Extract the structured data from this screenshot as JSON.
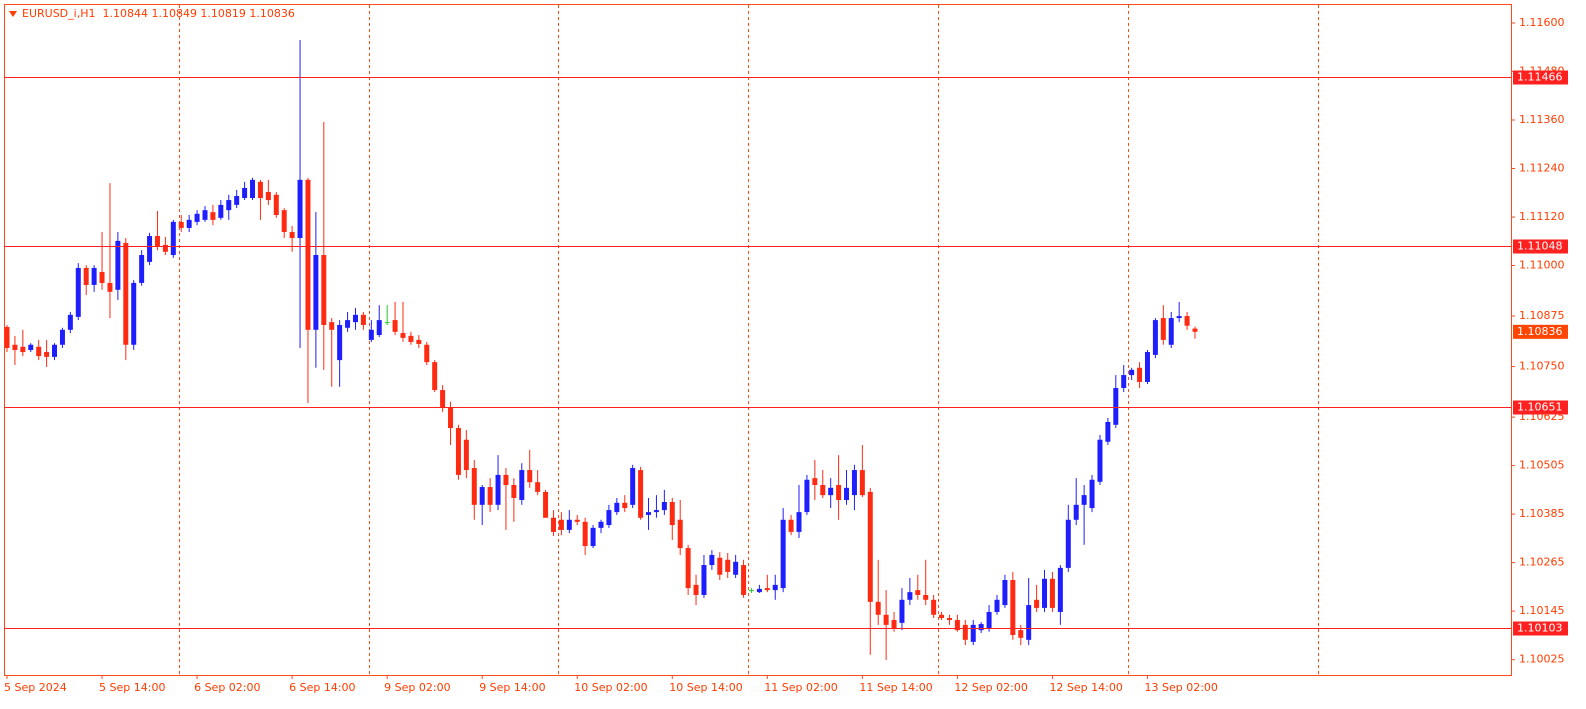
{
  "chart_data": {
    "type": "candlestick",
    "title": "EURUSD_i,H1  1.10844 1.10849 1.10819 1.10836",
    "up_color": "#1e1eff",
    "down_color": "#ff2a12",
    "doji_color": "#22cc22",
    "line_color": "#ff2020",
    "ylim": [
      1.09987,
      1.11647
    ],
    "yticks": [
      {
        "value": 1.116,
        "label": "1.11600"
      },
      {
        "value": 1.1148,
        "label": "1.11480"
      },
      {
        "value": 1.1136,
        "label": "1.11360"
      },
      {
        "value": 1.1124,
        "label": "1.11240"
      },
      {
        "value": 1.1112,
        "label": "1.11120"
      },
      {
        "value": 1.11,
        "label": "1.11000"
      },
      1.10875,
      {
        "value": 1.1075,
        "label": "1.10750"
      },
      1.10625,
      1.10505,
      1.10385,
      1.10265,
      1.10145,
      1.10025
    ],
    "hlines": [
      1.11466,
      1.11048,
      1.10651,
      1.10103
    ],
    "categories": [
      "5 Sep 2024",
      null,
      null,
      null,
      null,
      null,
      null,
      null,
      null,
      null,
      null,
      null,
      "5 Sep 14:00",
      null,
      null,
      null,
      null,
      null,
      null,
      null,
      null,
      null,
      null,
      null,
      "6 Sep 02:00",
      null,
      null,
      null,
      null,
      null,
      null,
      null,
      null,
      null,
      null,
      null,
      "6 Sep 14:00",
      null,
      null,
      null,
      null,
      null,
      null,
      null,
      null,
      null,
      null,
      null,
      "9 Sep 02:00",
      null,
      null,
      null,
      null,
      null,
      null,
      null,
      null,
      null,
      null,
      null,
      "9 Sep 14:00",
      null,
      null,
      null,
      null,
      null,
      null,
      null,
      null,
      null,
      null,
      null,
      "10 Sep 02:00",
      null,
      null,
      null,
      null,
      null,
      null,
      null,
      null,
      null,
      null,
      null,
      "10 Sep 14:00",
      null,
      null,
      null,
      null,
      null,
      null,
      null,
      null,
      null,
      null,
      null,
      "11 Sep 02:00",
      null,
      null,
      null,
      null,
      null,
      null,
      null,
      null,
      null,
      null,
      null,
      "11 Sep 14:00",
      null,
      null,
      null,
      null,
      null,
      null,
      null,
      null,
      null,
      null,
      null,
      "12 Sep 02:00",
      null,
      null,
      null,
      null,
      null,
      null,
      null,
      null,
      null,
      null,
      null,
      "12 Sep 14:00",
      null,
      null,
      null,
      null,
      null,
      null,
      null,
      null,
      null,
      null,
      null,
      "13 Sep 02:00",
      null,
      null,
      null,
      null,
      null,
      null
    ],
    "open": [
      1.10848,
      1.10804,
      1.10799,
      1.10791,
      1.10799,
      1.10786,
      1.10774,
      1.10804,
      1.10841,
      1.10873,
      1.10994,
      1.10952,
      1.10984,
      1.10957,
      1.1094,
      1.11056,
      1.10804,
      1.10957,
      1.11009,
      1.11073,
      1.11051,
      1.11026,
      1.11108,
      1.11093,
      1.11108,
      1.11113,
      1.11132,
      1.11118,
      1.11137,
      1.1115,
      1.11167,
      1.11167,
      1.11207,
      1.11182,
      1.11175,
      1.11137,
      1.11083,
      1.11068,
      1.11212,
      1.10841,
      1.11026,
      1.1086,
      1.10766,
      1.10846,
      1.1086,
      1.10878,
      1.10816,
      1.10828,
      1.1086,
      1.10865,
      1.10833,
      1.10826,
      1.10816,
      1.10804,
      1.10761,
      1.10692,
      1.10648,
      1.10598,
      1.10569,
      1.10499,
      1.10408,
      1.10452,
      1.10408,
      1.10482,
      1.10457,
      1.1042,
      1.10494,
      1.10464,
      1.1044,
      1.10376,
      1.10371,
      1.10346,
      1.10371,
      1.10366,
      1.10306,
      1.10351,
      1.10358,
      1.1039,
      1.10413,
      1.10408,
      1.10494,
      1.10383,
      1.1039,
      1.10395,
      1.10415,
      1.10371,
      1.10301,
      1.1021,
      1.10185,
      1.10259,
      1.10277,
      1.10272,
      1.10235,
      1.10259,
      1.10197,
      1.10192,
      1.10202,
      1.10197,
      1.10202,
      1.10371,
      1.10341,
      1.1039,
      1.10474,
      1.10457,
      1.10432,
      1.10457,
      1.1042,
      1.10432,
      1.10494,
      1.1044,
      1.10168,
      1.10136,
      1.10123,
      1.10116,
      1.10173,
      1.10197,
      1.10185,
      1.10173,
      1.10136,
      1.10128,
      1.10123,
      1.10111,
      1.10069,
      1.10098,
      1.10103,
      1.10143,
      1.1016,
      1.10222,
      1.10098,
      1.10074,
      1.10173,
      1.10153,
      1.10225,
      1.10143,
      1.10252,
      1.10371,
      1.10408,
      1.104,
      1.10465,
      1.10564,
      1.10606,
      1.10697,
      1.10729,
      1.10747,
      1.10712,
      1.10779,
      1.1087,
      1.10804,
      1.1087,
      1.10875,
      1.10844
    ],
    "high": [
      1.10853,
      1.10826,
      1.10841,
      1.10808,
      1.10816,
      1.10816,
      1.10808,
      1.10846,
      1.10885,
      1.11006,
      1.11001,
      1.11001,
      1.11083,
      1.11204,
      1.11083,
      1.11068,
      1.10964,
      1.11038,
      1.11081,
      1.11135,
      1.11071,
      1.11113,
      1.11125,
      1.11125,
      1.11137,
      1.11147,
      1.1115,
      1.11162,
      1.11175,
      1.11187,
      1.11207,
      1.11217,
      1.11212,
      1.11212,
      1.11182,
      1.11142,
      1.11098,
      1.11558,
      1.11217,
      1.11132,
      1.11355,
      1.1087,
      1.10865,
      1.10885,
      1.10895,
      1.10885,
      1.10865,
      1.10902,
      1.10902,
      1.1091,
      1.1091,
      1.10836,
      1.10828,
      1.10811,
      1.10766,
      1.10704,
      1.10663,
      1.10606,
      1.10593,
      1.10519,
      1.10457,
      1.10474,
      1.10531,
      1.10499,
      1.10474,
      1.10511,
      1.10544,
      1.10494,
      1.10445,
      1.10395,
      1.1039,
      1.10395,
      1.10383,
      1.10376,
      1.10358,
      1.10371,
      1.10408,
      1.10425,
      1.10432,
      1.10507,
      1.10502,
      1.10425,
      1.10432,
      1.10445,
      1.10425,
      1.1042,
      1.10309,
      1.10235,
      1.10284,
      1.10296,
      1.10291,
      1.10289,
      1.10284,
      1.10272,
      1.10202,
      1.1021,
      1.10235,
      1.10235,
      1.104,
      1.10383,
      1.10457,
      1.10482,
      1.10519,
      1.10494,
      1.10474,
      1.10531,
      1.10494,
      1.10507,
      1.10556,
      1.1045,
      1.10272,
      1.10197,
      1.10143,
      1.10202,
      1.10227,
      1.10235,
      1.10272,
      1.10185,
      1.10143,
      1.10136,
      1.10136,
      1.10123,
      1.10123,
      1.10118,
      1.1016,
      1.10185,
      1.10235,
      1.10242,
      1.10111,
      1.10227,
      1.1021,
      1.10247,
      1.10242,
      1.10259,
      1.10408,
      1.10474,
      1.10457,
      1.10482,
      1.10581,
      1.10623,
      1.10729,
      1.10754,
      1.10747,
      1.10761,
      1.10791,
      1.1087,
      1.10902,
      1.10885,
      1.1091,
      1.10885,
      1.10849
    ],
    "low": [
      1.10786,
      1.10754,
      1.10776,
      1.10786,
      1.10766,
      1.10749,
      1.10766,
      1.10796,
      1.10833,
      1.10865,
      1.10927,
      1.10935,
      1.1094,
      1.1087,
      1.10915,
      1.10766,
      1.10791,
      1.1095,
      1.11001,
      1.11038,
      1.11026,
      1.11019,
      1.11083,
      1.11083,
      1.111,
      1.11108,
      1.111,
      1.11113,
      1.11113,
      1.11142,
      1.11162,
      1.11162,
      1.11113,
      1.1115,
      1.11118,
      1.11068,
      1.11034,
      1.10796,
      1.1066,
      1.10747,
      1.10742,
      1.107,
      1.107,
      1.10836,
      1.10841,
      1.10841,
      1.10811,
      1.10823,
      1.10853,
      1.10828,
      1.10811,
      1.10804,
      1.10796,
      1.10754,
      1.10687,
      1.10638,
      1.10556,
      1.1047,
      1.10474,
      1.10371,
      1.10358,
      1.1039,
      1.10395,
      1.10346,
      1.10366,
      1.10408,
      1.1045,
      1.10432,
      1.10376,
      1.10331,
      1.10333,
      1.10338,
      1.10358,
      1.10284,
      1.10301,
      1.10338,
      1.10351,
      1.10383,
      1.1039,
      1.104,
      1.10371,
      1.10346,
      1.10376,
      1.10383,
      1.10321,
      1.10284,
      1.10185,
      1.1016,
      1.10178,
      1.10247,
      1.10222,
      1.10227,
      1.10227,
      1.10178,
      1.1019,
      1.1019,
      1.10192,
      1.10173,
      1.10192,
      1.10333,
      1.10326,
      1.10383,
      1.1042,
      1.10425,
      1.104,
      1.10371,
      1.10408,
      1.10395,
      1.10427,
      1.10037,
      1.10111,
      1.10024,
      1.10094,
      1.10098,
      1.1016,
      1.10173,
      1.1016,
      1.10128,
      1.10123,
      1.10111,
      1.10094,
      1.10061,
      1.10061,
      1.10091,
      1.10094,
      1.10136,
      1.10153,
      1.10074,
      1.10061,
      1.10061,
      1.10143,
      1.10143,
      1.10143,
      1.10111,
      1.10242,
      1.10358,
      1.10309,
      1.1039,
      1.10457,
      1.10556,
      1.10598,
      1.10687,
      1.10717,
      1.10697,
      1.10707,
      1.10771,
      1.10804,
      1.10796,
      1.1086,
      1.10841,
      1.10819
    ],
    "close": [
      1.10796,
      1.10791,
      1.10786,
      1.10804,
      1.10776,
      1.10774,
      1.10804,
      1.10841,
      1.10878,
      1.10994,
      1.10952,
      1.10994,
      1.10957,
      1.10935,
      1.11061,
      1.10804,
      1.10957,
      1.11026,
      1.11073,
      1.11046,
      1.11034,
      1.11108,
      1.11093,
      1.11113,
      1.11128,
      1.11137,
      1.11113,
      1.1115,
      1.11162,
      1.11172,
      1.11192,
      1.11212,
      1.11167,
      1.11162,
      1.11125,
      1.11083,
      1.11068,
      1.11212,
      1.10841,
      1.11026,
      1.10853,
      1.10841,
      1.10853,
      1.10865,
      1.10878,
      1.10853,
      1.10841,
      1.10865,
      1.1086,
      1.10836,
      1.10821,
      1.10811,
      1.10806,
      1.10761,
      1.10692,
      1.10648,
      1.10598,
      1.10482,
      1.10494,
      1.10408,
      1.10452,
      1.10408,
      1.10482,
      1.10457,
      1.10425,
      1.10494,
      1.10464,
      1.1044,
      1.10376,
      1.10341,
      1.10346,
      1.10371,
      1.10366,
      1.10306,
      1.10351,
      1.10366,
      1.10395,
      1.10413,
      1.104,
      1.10499,
      1.10376,
      1.1039,
      1.10395,
      1.10415,
      1.10358,
      1.10301,
      1.10202,
      1.10185,
      1.10259,
      1.10284,
      1.10235,
      1.10242,
      1.10267,
      1.10185,
      1.10197,
      1.102,
      1.10197,
      1.1021,
      1.10371,
      1.10341,
      1.1039,
      1.1047,
      1.10457,
      1.10432,
      1.1045,
      1.1042,
      1.1045,
      1.10494,
      1.10432,
      1.10168,
      1.10136,
      1.10111,
      1.10103,
      1.10173,
      1.10192,
      1.10185,
      1.10173,
      1.10136,
      1.10128,
      1.10123,
      1.10098,
      1.10074,
      1.10111,
      1.10113,
      1.10143,
      1.10173,
      1.10222,
      1.10086,
      1.10079,
      1.1016,
      1.10153,
      1.10225,
      1.10153,
      1.10252,
      1.10371,
      1.10408,
      1.10432,
      1.1047,
      1.10569,
      1.10613,
      1.10697,
      1.10729,
      1.10742,
      1.10712,
      1.10786,
      1.10865,
      1.10816,
      1.1087,
      1.10875,
      1.10851,
      1.10836
    ]
  }
}
